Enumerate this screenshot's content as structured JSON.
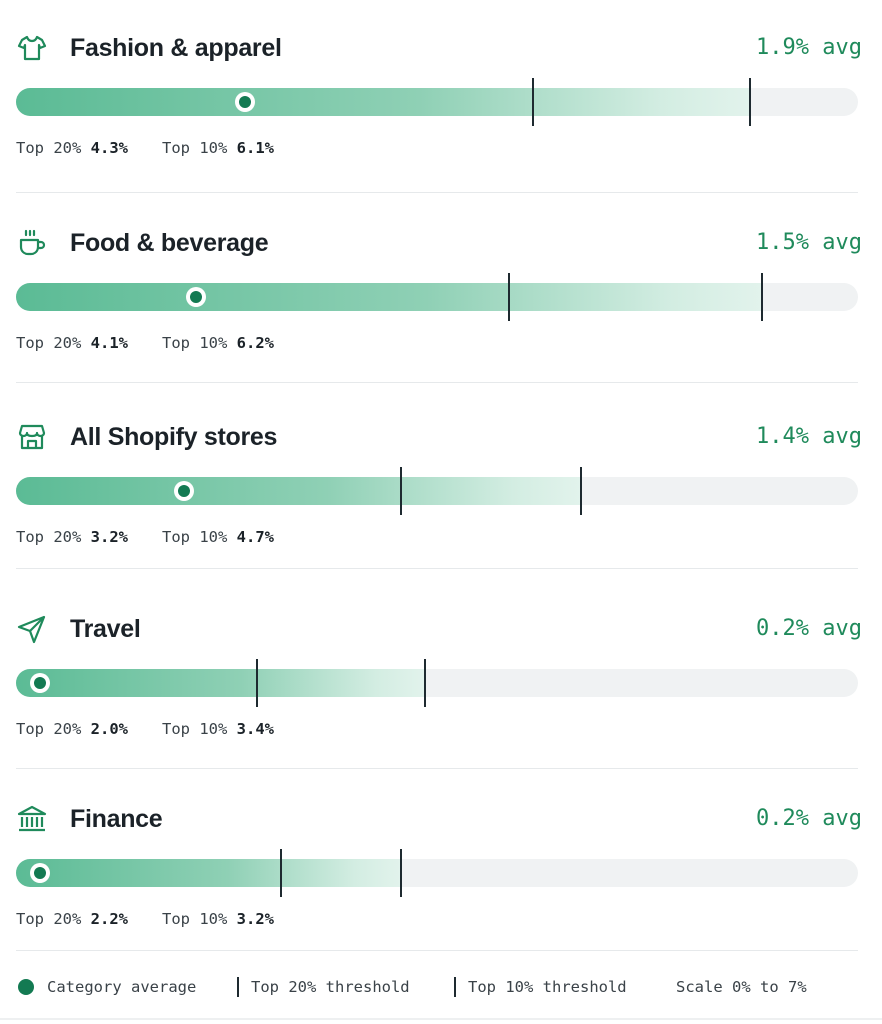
{
  "chart_data": {
    "type": "bar",
    "scale": {
      "min": 0,
      "max": 7,
      "unit": "%"
    },
    "categories": [
      {
        "name": "Fashion & apparel",
        "icon": "shirt-icon",
        "avg": 1.9,
        "avg_label": "1.9% avg",
        "top20": 4.3,
        "top10": 6.1,
        "top20_label": "4.3%",
        "top10_label": "6.1%"
      },
      {
        "name": "Food & beverage",
        "icon": "cup-icon",
        "avg": 1.5,
        "avg_label": "1.5% avg",
        "top20": 4.1,
        "top10": 6.2,
        "top20_label": "4.1%",
        "top10_label": "6.2%"
      },
      {
        "name": "All Shopify stores",
        "icon": "storefront-icon",
        "avg": 1.4,
        "avg_label": "1.4% avg",
        "top20": 3.2,
        "top10": 4.7,
        "top20_label": "3.2%",
        "top10_label": "4.7%"
      },
      {
        "name": "Travel",
        "icon": "paper-plane-icon",
        "avg": 0.2,
        "avg_label": "0.2% avg",
        "top20": 2.0,
        "top10": 3.4,
        "top20_label": "2.0%",
        "top10_label": "3.4%"
      },
      {
        "name": "Finance",
        "icon": "bank-icon",
        "avg": 0.2,
        "avg_label": "0.2% avg",
        "top20": 2.2,
        "top10": 3.2,
        "top20_label": "2.2%",
        "top10_label": "3.2%"
      }
    ]
  },
  "labels": {
    "top20": "Top 20%",
    "top10": "Top 10%"
  },
  "legend": {
    "avg": "Category average",
    "top20": "Top 20% threshold",
    "top10": "Top 10% threshold",
    "scale": "Scale 0% to 7%"
  },
  "colors": {
    "accent": "#1f8a5b",
    "dot": "#137a52",
    "track": "#f0f2f3",
    "tick": "#1e2a30"
  }
}
